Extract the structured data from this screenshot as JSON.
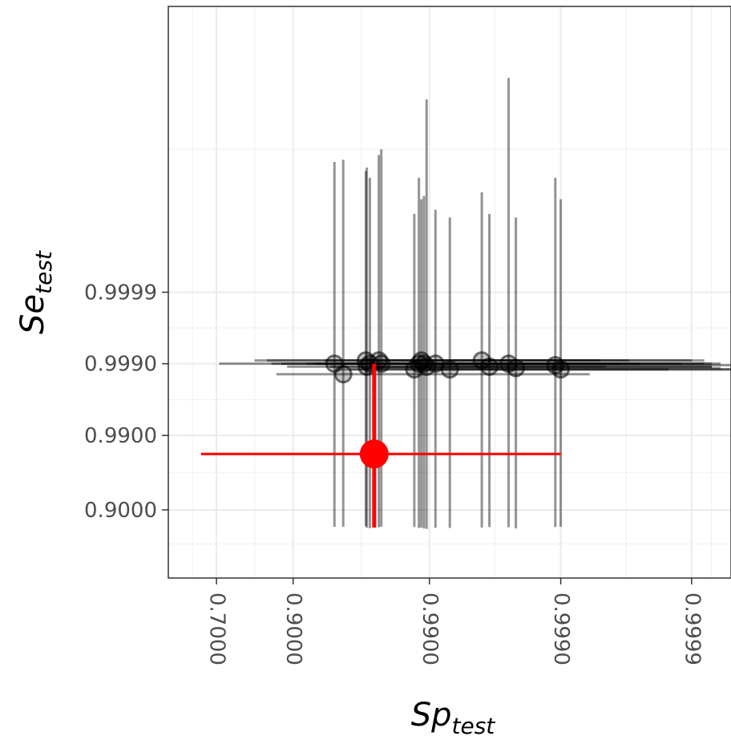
{
  "chart_data": {
    "type": "scatter",
    "title": "",
    "xlabel": {
      "main": "Sp",
      "sub": "test"
    },
    "ylabel": {
      "main": "Se",
      "sub": "test"
    },
    "x_scale": "logit",
    "y_scale": "logit",
    "xlim": [
      0.5,
      0.99995
    ],
    "ylim": [
      0.5,
      0.99999999
    ],
    "x_ticks": [
      0.7,
      0.9,
      0.99,
      0.999,
      0.9999
    ],
    "x_tick_labels": [
      "0.7000",
      "0.9000",
      "0.9900",
      "0.9990",
      "0.9999"
    ],
    "y_ticks": [
      0.9,
      0.99,
      0.999,
      0.9999
    ],
    "y_tick_labels": [
      "0.9000",
      "0.9900",
      "0.9990",
      "0.9999"
    ],
    "grid": true,
    "legend": "none",
    "colors": {
      "studies": "#000000",
      "pooled": "#ff0000"
    },
    "series": [
      {
        "points": [
          {
            "x": 0.949,
            "y": 0.999,
            "xmin": 0.71,
            "xmax": 0.9986,
            "ymin": 0.839,
            "ymax": 0.9999985
          },
          {
            "x": 0.956,
            "y": 0.9986,
            "xmin": 0.87,
            "xmax": 0.9994,
            "ymin": 0.839,
            "ymax": 0.9999986
          },
          {
            "x": 0.97,
            "y": 0.9991,
            "xmin": 0.82,
            "xmax": 0.9995,
            "ymin": 0.842,
            "ymax": 0.999998
          },
          {
            "x": 0.9705,
            "y": 0.9989,
            "xmin": 0.89,
            "xmax": 0.99955,
            "ymin": 0.835,
            "ymax": 0.9999982
          },
          {
            "x": 0.972,
            "y": 0.999,
            "xmin": 0.88,
            "xmax": 0.99965,
            "ymin": 0.833,
            "ymax": 0.9999975
          },
          {
            "x": 0.976,
            "y": 0.9991,
            "xmin": 0.85,
            "xmax": 0.9997,
            "ymin": 0.837,
            "ymax": 0.9999988
          },
          {
            "x": 0.977,
            "y": 0.999,
            "xmin": 0.86,
            "xmax": 0.99975,
            "ymin": 0.84,
            "ymax": 0.999999
          },
          {
            "x": 0.987,
            "y": 0.9988,
            "xmin": 0.95,
            "xmax": 0.99985,
            "ymin": 0.838,
            "ymax": 0.999992
          },
          {
            "x": 0.988,
            "y": 0.999,
            "xmin": 0.93,
            "xmax": 0.99988,
            "ymin": 0.834,
            "ymax": 0.9999975
          },
          {
            "x": 0.9885,
            "y": 0.9991,
            "xmin": 0.94,
            "xmax": 0.9999,
            "ymin": 0.836,
            "ymax": 0.999995
          },
          {
            "x": 0.989,
            "y": 0.999,
            "xmin": 0.92,
            "xmax": 0.99992,
            "ymin": 0.832,
            "ymax": 0.9999955
          },
          {
            "x": 0.9895,
            "y": 0.9989,
            "xmin": 0.945,
            "xmax": 0.99993,
            "ymin": 0.83,
            "ymax": 0.9999998
          },
          {
            "x": 0.991,
            "y": 0.999,
            "xmin": 0.955,
            "xmax": 0.99994,
            "ymin": 0.835,
            "ymax": 0.999993
          },
          {
            "x": 0.993,
            "y": 0.9988,
            "xmin": 0.96,
            "xmax": 0.99995,
            "ymin": 0.834,
            "ymax": 0.999991
          },
          {
            "x": 0.996,
            "y": 0.9991,
            "xmin": 0.97,
            "xmax": 0.99992,
            "ymin": 0.836,
            "ymax": 0.999996
          },
          {
            "x": 0.9965,
            "y": 0.9989,
            "xmin": 0.975,
            "xmax": 0.99993,
            "ymin": 0.838,
            "ymax": 0.999992
          },
          {
            "x": 0.9975,
            "y": 0.999,
            "xmin": 0.98,
            "xmax": 0.99993,
            "ymin": 0.837,
            "ymax": 0.9999999
          },
          {
            "x": 0.9978,
            "y": 0.99885,
            "xmin": 0.97,
            "xmax": 0.99994,
            "ymin": 0.832,
            "ymax": 0.999991
          },
          {
            "x": 0.9989,
            "y": 0.99895,
            "xmin": 0.988,
            "xmax": 0.99996,
            "ymin": 0.838,
            "ymax": 0.9999975
          },
          {
            "x": 0.999,
            "y": 0.9988,
            "xmin": 0.99,
            "xmax": 0.99997,
            "ymin": 0.839,
            "ymax": 0.999995
          }
        ]
      },
      {
        "points": [
          {
            "x": 0.974,
            "y": 0.982,
            "xmin": 0.64,
            "xmax": 0.999,
            "ymin": 0.836,
            "ymax": 0.999
          }
        ]
      }
    ]
  }
}
